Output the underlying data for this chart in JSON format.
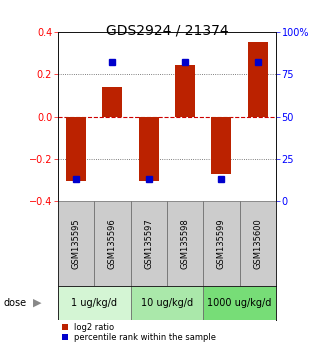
{
  "title": "GDS2924 / 21374",
  "samples": [
    "GSM135595",
    "GSM135596",
    "GSM135597",
    "GSM135598",
    "GSM135599",
    "GSM135600"
  ],
  "log2_ratio": [
    -0.305,
    0.14,
    -0.305,
    0.245,
    -0.27,
    0.35
  ],
  "percentile_rank": [
    13,
    82,
    13,
    82,
    13,
    82
  ],
  "dose_groups": [
    {
      "label": "1 ug/kg/d",
      "samples": [
        0,
        1
      ],
      "color": "#d4f5d4"
    },
    {
      "label": "10 ug/kg/d",
      "samples": [
        2,
        3
      ],
      "color": "#aae8aa"
    },
    {
      "label": "1000 ug/kg/d",
      "samples": [
        4,
        5
      ],
      "color": "#77dd77"
    }
  ],
  "ylim_left": [
    -0.4,
    0.4
  ],
  "ylim_right": [
    0,
    100
  ],
  "yticks_left": [
    -0.4,
    -0.2,
    0,
    0.2,
    0.4
  ],
  "yticks_right": [
    0,
    25,
    50,
    75,
    100
  ],
  "bar_color_red": "#bb2200",
  "bar_color_blue": "#0000cc",
  "bar_width": 0.55,
  "hline_zero_color": "#cc0000",
  "dotted_line_color": "#555555",
  "sample_bg_color": "#cccccc",
  "legend_red_label": "log2 ratio",
  "legend_blue_label": "percentile rank within the sample",
  "title_fontsize": 10,
  "tick_fontsize": 7,
  "axis_label_fontsize": 7
}
